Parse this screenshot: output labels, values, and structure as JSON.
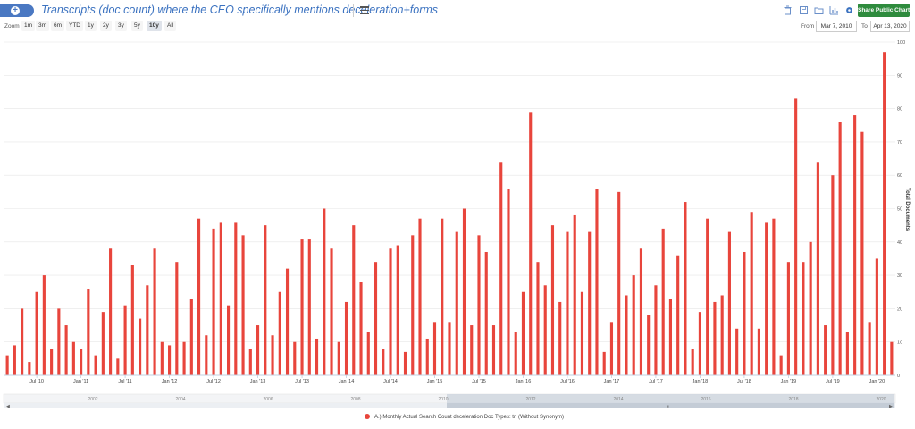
{
  "header": {
    "title": "Transcripts (doc count) where the CEO specifically mentions deceleration+forms",
    "share_label": "Share Public Chart"
  },
  "icons": {
    "add": "plus-circle-icon",
    "menu": "hamburger-menu-icon",
    "tools": [
      "trash-icon",
      "save-icon",
      "folder-icon",
      "bar-chart-icon",
      "gear-icon"
    ]
  },
  "zoom": {
    "label": "Zoom",
    "buttons": [
      "1m",
      "3m",
      "6m",
      "YTD",
      "1y",
      "2y",
      "3y",
      "5y",
      "10y",
      "All"
    ],
    "active": "10y"
  },
  "range": {
    "from_label": "From",
    "from_value": "Mar 7, 2010",
    "to_label": "To",
    "to_value": "Apr 13, 2020"
  },
  "colors": {
    "bar": "#e8453c",
    "accent": "#3b72c0",
    "share_button": "#2e8b3d"
  },
  "chart_data": {
    "type": "bar",
    "ylabel": "Total Documents",
    "ylim": [
      0,
      100
    ],
    "y_ticks": [
      0,
      10,
      20,
      30,
      40,
      50,
      60,
      70,
      80,
      90,
      100
    ],
    "grid": true,
    "x_tick_labels": [
      "Jul '10",
      "Jan '11",
      "Jul '11",
      "Jan '12",
      "Jul '12",
      "Jan '13",
      "Jul '13",
      "Jan '14",
      "Jul '14",
      "Jan '15",
      "Jul '15",
      "Jan '16",
      "Jul '16",
      "Jan '17",
      "Jul '17",
      "Jan '18",
      "Jul '18",
      "Jan '19",
      "Jul '19",
      "Jan '20"
    ],
    "navigator_labels": [
      "2002",
      "2004",
      "2006",
      "2008",
      "2010",
      "2012",
      "2014",
      "2016",
      "2018",
      "2020"
    ],
    "legend_position": "bottom-center",
    "series": [
      {
        "name": "A.) Monthly Actual Search Count deceleration Doc Types: tr, (Without Synonym)",
        "values": [
          6,
          9,
          20,
          4,
          25,
          30,
          8,
          20,
          15,
          10,
          8,
          26,
          6,
          19,
          38,
          5,
          21,
          33,
          17,
          27,
          38,
          10,
          9,
          34,
          10,
          23,
          47,
          12,
          44,
          46,
          21,
          46,
          42,
          8,
          15,
          45,
          12,
          25,
          32,
          10,
          41,
          41,
          11,
          50,
          38,
          10,
          22,
          45,
          28,
          13,
          34,
          8,
          38,
          39,
          7,
          42,
          47,
          11,
          16,
          47,
          16,
          43,
          50,
          15,
          42,
          37,
          15,
          64,
          56,
          13,
          25,
          79,
          34,
          27,
          45,
          22,
          43,
          48,
          25,
          43,
          56,
          7,
          16,
          55,
          24,
          30,
          38,
          18,
          27,
          44,
          23,
          36,
          52,
          8,
          19,
          47,
          22,
          24,
          43,
          14,
          37,
          49,
          14,
          46,
          47,
          6,
          34,
          83,
          34,
          40,
          64,
          15,
          60,
          76,
          13,
          78,
          73,
          16,
          35,
          97,
          10
        ]
      }
    ]
  }
}
